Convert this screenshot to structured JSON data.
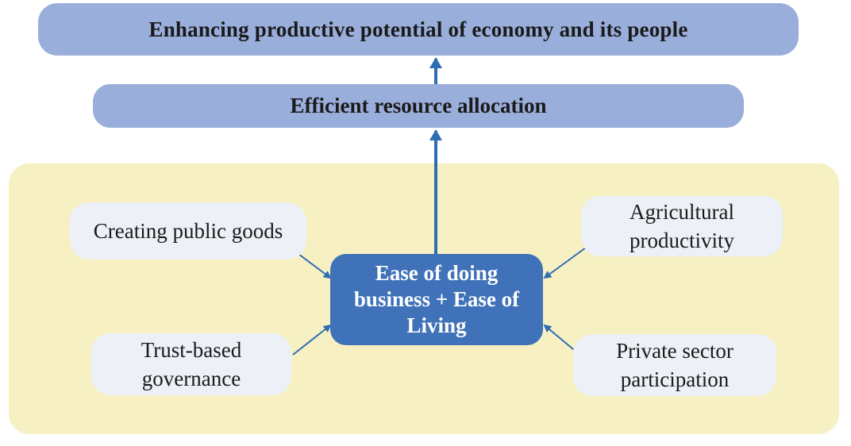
{
  "diagram": {
    "top_goal": "Enhancing productive potential of economy and its people",
    "middle_goal": "Efficient resource allocation",
    "core": "Ease of doing business + Ease of Living",
    "drivers": {
      "public_goods": "Creating public goods",
      "trust_governance": "Trust-based governance",
      "agricultural_productivity": "Agricultural productivity",
      "private_sector": "Private sector participation"
    }
  },
  "colors": {
    "goal_fill": "#9aaedb",
    "panel_fill": "#f6f0c3",
    "driver_fill": "#edf0f7",
    "core_fill": "#3f72b8",
    "arrow": "#2f6db3"
  }
}
